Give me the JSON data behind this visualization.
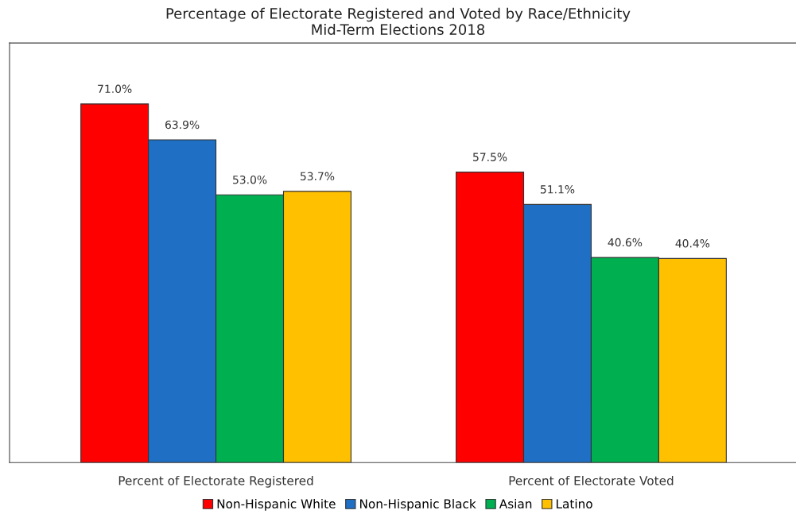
{
  "chart_data": {
    "type": "bar",
    "title": "Percentage of Electorate Registered and Voted by Race/Ethnicity\nMid-Term Elections 2018",
    "categories": [
      "Percent of Electorate Registered",
      "Percent of Electorate Voted"
    ],
    "series": [
      {
        "name": "Non-Hispanic White",
        "color": "#ff0000",
        "values": [
          71.0,
          57.5
        ],
        "value_labels": [
          "71.0%",
          "57.5%"
        ]
      },
      {
        "name": "Non-Hispanic Black",
        "color": "#1f6fc5",
        "values": [
          63.9,
          51.1
        ],
        "value_labels": [
          "63.9%",
          "51.1%"
        ]
      },
      {
        "name": "Asian",
        "color": "#00b050",
        "values": [
          53.0,
          40.6
        ],
        "value_labels": [
          "53.0%",
          "40.6%"
        ]
      },
      {
        "name": "Latino",
        "color": "#ffc000",
        "values": [
          53.7,
          40.4
        ],
        "value_labels": [
          "53.7%",
          "40.4%"
        ]
      }
    ],
    "legend": "bottom",
    "grid": false,
    "tick_labels": "x"
  }
}
